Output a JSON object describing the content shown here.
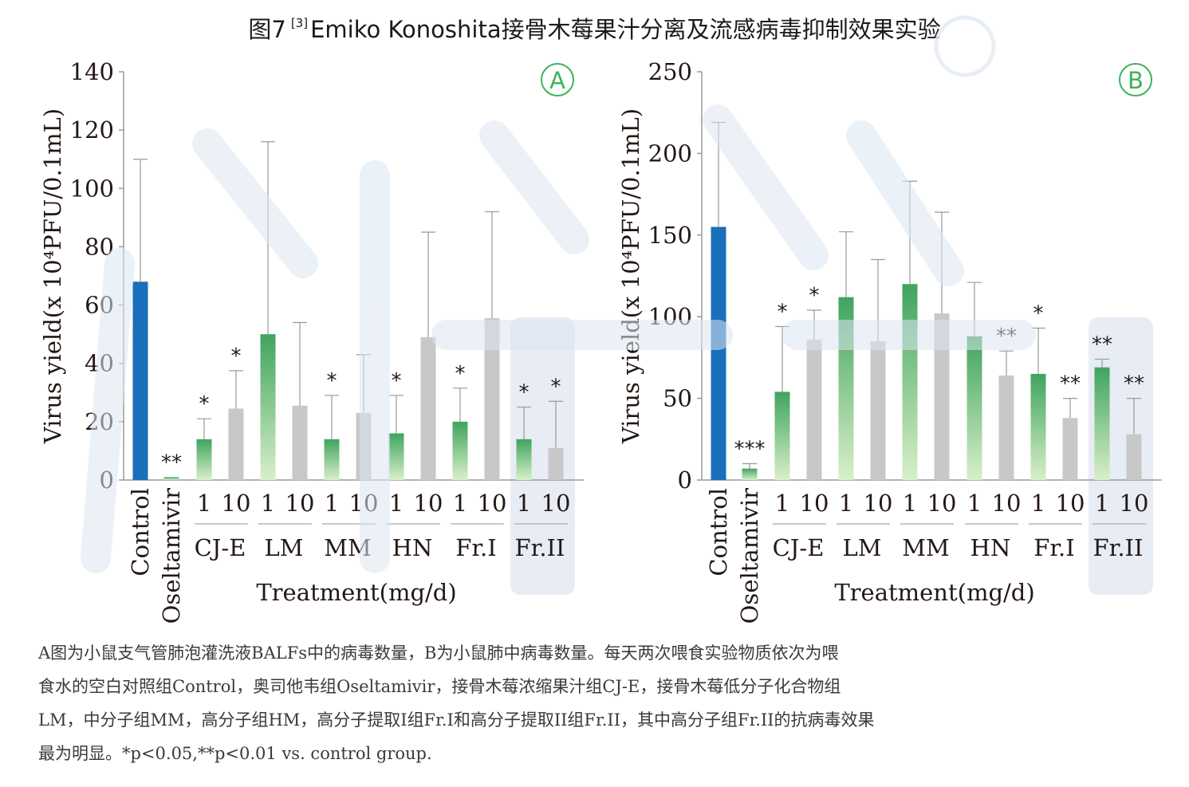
{
  "title": {
    "prefix": "图7",
    "ref": "[3]",
    "main": "Emiko Konoshita接骨木莓果汁分离及流感病毒抑制效果实验"
  },
  "colors": {
    "control": "#1a6fba",
    "green": "#4caf67",
    "gray": "#c8c8c8",
    "highlight": "#dfe6f2",
    "letter": "#3bb35a"
  },
  "chart_data": [
    {
      "panel": "A",
      "type": "bar",
      "ylabel": "Virus yield(x 10⁴PFU/0.1mL)",
      "xlabel": "Treatment(mg/d)",
      "ylim": [
        0,
        140
      ],
      "yticks": [
        0,
        20,
        40,
        60,
        80,
        100,
        120,
        140
      ],
      "single_groups": [
        "Control",
        "Oseltamivir"
      ],
      "dose_groups": [
        "CJ-E",
        "LM",
        "MM",
        "HN",
        "Fr.I",
        "Fr.II"
      ],
      "dose_labels": [
        "1",
        "10"
      ],
      "highlight_group": "Fr.II",
      "bars": [
        {
          "group": "Control",
          "dose": "",
          "value": 68,
          "error": 42,
          "sig": "",
          "color": "control"
        },
        {
          "group": "Oseltamivir",
          "dose": "",
          "value": 1,
          "error": 0,
          "sig": "**",
          "color": "green"
        },
        {
          "group": "CJ-E",
          "dose": "1",
          "value": 14,
          "error": 7,
          "sig": "*",
          "color": "green"
        },
        {
          "group": "CJ-E",
          "dose": "10",
          "value": 24.5,
          "error": 13,
          "sig": "*",
          "color": "gray"
        },
        {
          "group": "LM",
          "dose": "1",
          "value": 50,
          "error": 66,
          "sig": "",
          "color": "green"
        },
        {
          "group": "LM",
          "dose": "10",
          "value": 25.5,
          "error": 28.5,
          "sig": "",
          "color": "gray"
        },
        {
          "group": "MM",
          "dose": "1",
          "value": 14,
          "error": 15,
          "sig": "*",
          "color": "green"
        },
        {
          "group": "MM",
          "dose": "10",
          "value": 23,
          "error": 20,
          "sig": "",
          "color": "gray"
        },
        {
          "group": "HN",
          "dose": "1",
          "value": 16,
          "error": 13,
          "sig": "*",
          "color": "green"
        },
        {
          "group": "HN",
          "dose": "10",
          "value": 49,
          "error": 36,
          "sig": "",
          "color": "gray"
        },
        {
          "group": "Fr.I",
          "dose": "1",
          "value": 20,
          "error": 11.5,
          "sig": "*",
          "color": "green"
        },
        {
          "group": "Fr.I",
          "dose": "10",
          "value": 55.5,
          "error": 36.5,
          "sig": "",
          "color": "gray"
        },
        {
          "group": "Fr.II",
          "dose": "1",
          "value": 14,
          "error": 11,
          "sig": "*",
          "color": "green"
        },
        {
          "group": "Fr.II",
          "dose": "10",
          "value": 11,
          "error": 16,
          "sig": "*",
          "color": "gray"
        }
      ]
    },
    {
      "panel": "B",
      "type": "bar",
      "ylabel": "Virus yield(x 10⁴PFU/0.1mL)",
      "xlabel": "Treatment(mg/d)",
      "ylim": [
        0,
        250
      ],
      "yticks": [
        0,
        50,
        100,
        150,
        200,
        250
      ],
      "single_groups": [
        "Control",
        "Oseltamivir"
      ],
      "dose_groups": [
        "CJ-E",
        "LM",
        "MM",
        "HN",
        "Fr.I",
        "Fr.II"
      ],
      "dose_labels": [
        "1",
        "10"
      ],
      "highlight_group": "Fr.II",
      "bars": [
        {
          "group": "Control",
          "dose": "",
          "value": 155,
          "error": 64,
          "sig": "",
          "color": "control"
        },
        {
          "group": "Oseltamivir",
          "dose": "",
          "value": 7,
          "error": 3,
          "sig": "***",
          "color": "green"
        },
        {
          "group": "CJ-E",
          "dose": "1",
          "value": 54,
          "error": 40,
          "sig": "*",
          "color": "green"
        },
        {
          "group": "CJ-E",
          "dose": "10",
          "value": 86,
          "error": 18,
          "sig": "*",
          "color": "gray"
        },
        {
          "group": "LM",
          "dose": "1",
          "value": 112,
          "error": 40,
          "sig": "",
          "color": "green"
        },
        {
          "group": "LM",
          "dose": "10",
          "value": 85,
          "error": 50,
          "sig": "",
          "color": "gray"
        },
        {
          "group": "MM",
          "dose": "1",
          "value": 120,
          "error": 63,
          "sig": "",
          "color": "green"
        },
        {
          "group": "MM",
          "dose": "10",
          "value": 102,
          "error": 62,
          "sig": "",
          "color": "gray"
        },
        {
          "group": "HN",
          "dose": "1",
          "value": 88,
          "error": 33,
          "sig": "",
          "color": "green"
        },
        {
          "group": "HN",
          "dose": "10",
          "value": 64,
          "error": 15,
          "sig": "**",
          "color": "gray"
        },
        {
          "group": "Fr.I",
          "dose": "1",
          "value": 65,
          "error": 28,
          "sig": "*",
          "color": "green"
        },
        {
          "group": "Fr.I",
          "dose": "10",
          "value": 38,
          "error": 12,
          "sig": "**",
          "color": "gray"
        },
        {
          "group": "Fr.II",
          "dose": "1",
          "value": 69,
          "error": 5,
          "sig": "**",
          "color": "green"
        },
        {
          "group": "Fr.II",
          "dose": "10",
          "value": 28,
          "error": 22,
          "sig": "**",
          "color": "gray"
        }
      ]
    }
  ],
  "caption": {
    "line1": "A图为小鼠支气管肺泡灌洗液BALFs中的病毒数量，B为小鼠肺中病毒数量。每天两次喂食实验物质依次为喂",
    "line2": "食水的空白对照组Control，奥司他韦组Oseltamivir，接骨木莓浓缩果汁组CJ-E，接骨木莓低分子化合物组",
    "line3": "LM，中分子组MM，高分子组HM，高分子提取I组Fr.I和高分子提取II组Fr.II，其中高分子组Fr.II的抗病毒效果",
    "line4": "最为明显。*p<0.05,**p<0.01 vs. control group."
  }
}
